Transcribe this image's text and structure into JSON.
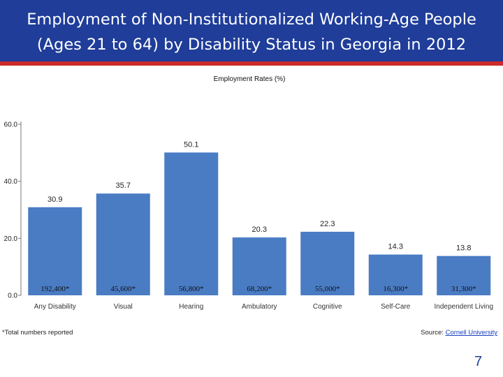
{
  "slide": {
    "title_line1": "Employment of Non-Institutionalized Working-Age People",
    "title_line2": "(Ages 21 to 64) by Disability Status in Georgia in 2012",
    "footnote": "*Total numbers reported",
    "source_label": "Source: ",
    "source_link": "Cornell University",
    "page_number": "7"
  },
  "colors": {
    "title_bar": "#1f3d99",
    "accent_stripe": "#cc2a2a",
    "bar": "#4a7cc4"
  },
  "chart_data": {
    "type": "bar",
    "title": "Employment Rates (%)",
    "categories": [
      "Any Disability",
      "Visual",
      "Hearing",
      "Ambulatory",
      "Cognitive",
      "Self-Care",
      "Independent Living"
    ],
    "values": [
      30.9,
      35.7,
      50.1,
      20.3,
      22.3,
      14.3,
      13.8
    ],
    "value_labels": [
      "30.9",
      "35.7",
      "50.1",
      "20.3",
      "22.3",
      "14.3",
      "13.8"
    ],
    "totals": [
      "192,400*",
      "45,600*",
      "56,800*",
      "68,200*",
      "55,000*",
      "16,300*",
      "31,300*"
    ],
    "yticks": [
      "0.0",
      "20.0",
      "40.0",
      "60.0"
    ],
    "ylim": [
      0,
      60
    ],
    "grid": false,
    "legend": "none"
  }
}
